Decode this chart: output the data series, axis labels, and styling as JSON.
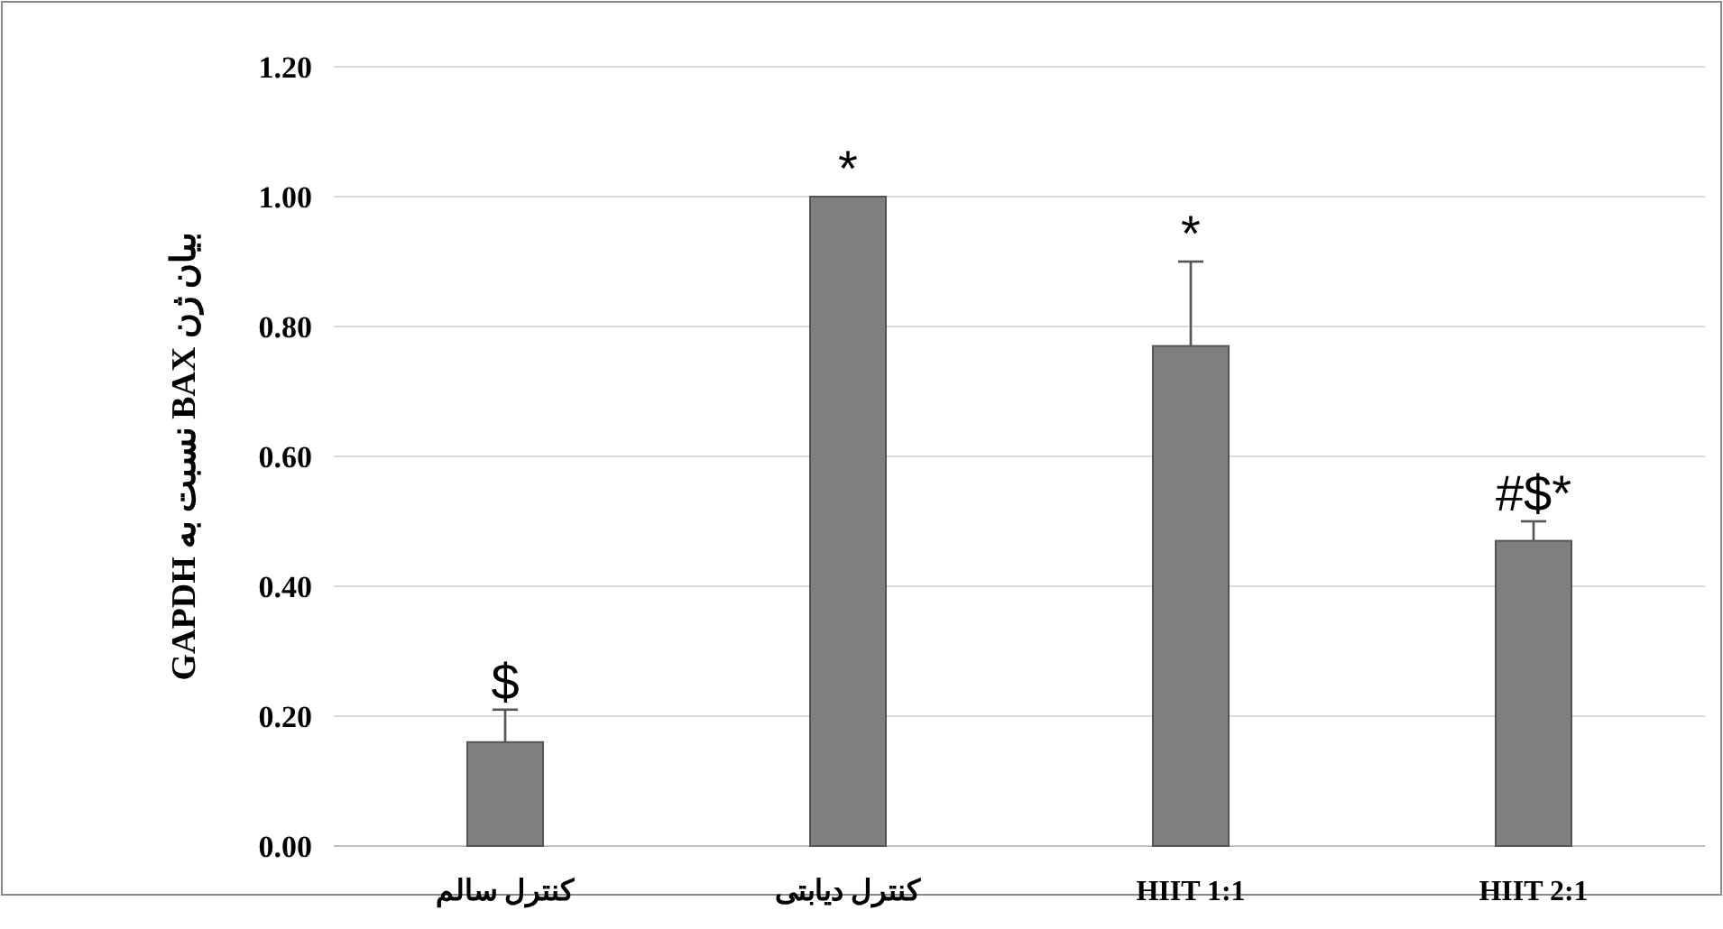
{
  "chart_data": {
    "type": "bar",
    "categories": [
      "کنترل سالم",
      "کنترل دیابتی",
      "HIIT 1:1",
      "HIIT 2:1"
    ],
    "values": [
      0.16,
      1.0,
      0.77,
      0.47
    ],
    "errors": [
      [
        0.16,
        0.21
      ],
      null,
      [
        0.77,
        0.9
      ],
      [
        0.47,
        0.5
      ]
    ],
    "color": "#7f7f7f",
    "ylabel": "بیان ژن BAX نسبت به GAPDH",
    "ylim": [
      0,
      1.2
    ],
    "yticks": [
      {
        "value": 0,
        "label": "0.00"
      },
      {
        "value": 0.2,
        "label": "0.20"
      },
      {
        "value": 0.4,
        "label": "0.40"
      },
      {
        "value": 0.6,
        "label": "0.60"
      },
      {
        "value": 0.8,
        "label": "0.80"
      },
      {
        "value": 1.0,
        "label": "1.00"
      },
      {
        "value": 1.2,
        "label": "1.20"
      }
    ],
    "grid": "y",
    "annotations": [
      {
        "text": "$",
        "x": "کنترل سالم",
        "y": 0.21
      },
      {
        "text": "*",
        "x": "کنترل دیابتی",
        "y": 1.0
      },
      {
        "text": "*",
        "x": "HIIT 1:1",
        "y": 0.9
      },
      {
        "text": "#$*",
        "x": "HIIT 2:1",
        "y": 0.5
      }
    ]
  }
}
